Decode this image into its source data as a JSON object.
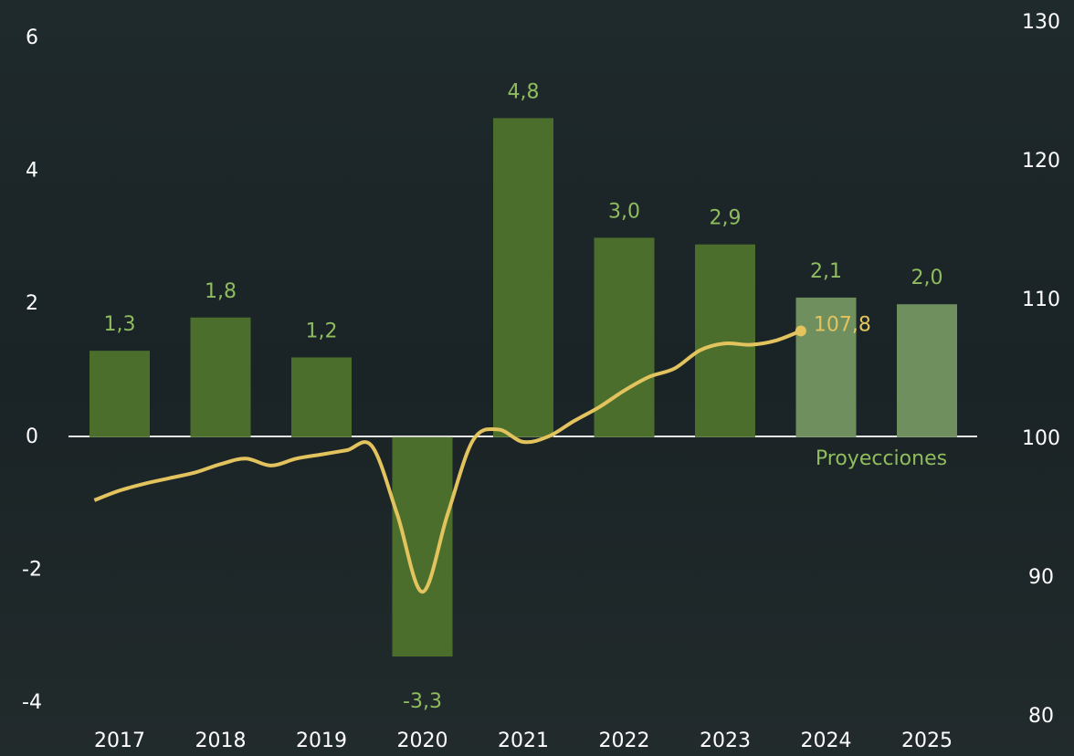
{
  "chart_data": {
    "type": "bar_line",
    "categories": [
      "2017",
      "2018",
      "2019",
      "2020",
      "2021",
      "2022",
      "2023",
      "2024",
      "2025"
    ],
    "series": [
      {
        "type": "bar",
        "values": [
          1.3,
          1.8,
          1.2,
          -3.3,
          4.8,
          3.0,
          2.9,
          2.1,
          2.0
        ],
        "value_labels": [
          "1,3",
          "1,8",
          "1,2",
          "-3,3",
          "4,8",
          "3,0",
          "2,9",
          "2,1",
          "2,0"
        ],
        "colors": [
          "#4b6e2c",
          "#4b6e2c",
          "#4b6e2c",
          "#4b6e2c",
          "#4b6e2c",
          "#4b6e2c",
          "#4b6e2c",
          "#6f8f5e",
          "#6f8f5e"
        ]
      },
      {
        "type": "line",
        "axis": "y2",
        "color": "#e2c35e",
        "x": [
          2016.75,
          2017.0,
          2017.25,
          2017.5,
          2017.75,
          2018.0,
          2018.25,
          2018.5,
          2018.75,
          2019.0,
          2019.25,
          2019.5,
          2019.75,
          2020.0,
          2020.25,
          2020.5,
          2020.75,
          2021.0,
          2021.25,
          2021.5,
          2021.75,
          2022.0,
          2022.25,
          2022.5,
          2022.75,
          2023.0,
          2023.25,
          2023.5,
          2023.75
        ],
        "values": [
          95.6,
          96.3,
          96.8,
          97.2,
          97.6,
          98.2,
          98.6,
          98.1,
          98.6,
          98.9,
          99.2,
          99.5,
          94.6,
          89.0,
          94.6,
          99.9,
          100.7,
          99.8,
          100.2,
          101.3,
          102.3,
          103.5,
          104.5,
          105.1,
          106.4,
          106.9,
          106.8,
          107.1,
          107.8
        ],
        "end_label": "107,8"
      }
    ],
    "annotation": "Proyecciones",
    "ylim": [
      -4,
      6
    ],
    "yticks": [
      -4,
      -2,
      0,
      2,
      4,
      6
    ],
    "y2lim": [
      80,
      130
    ],
    "y2ticks": [
      80,
      90,
      100,
      110,
      120,
      130
    ]
  }
}
